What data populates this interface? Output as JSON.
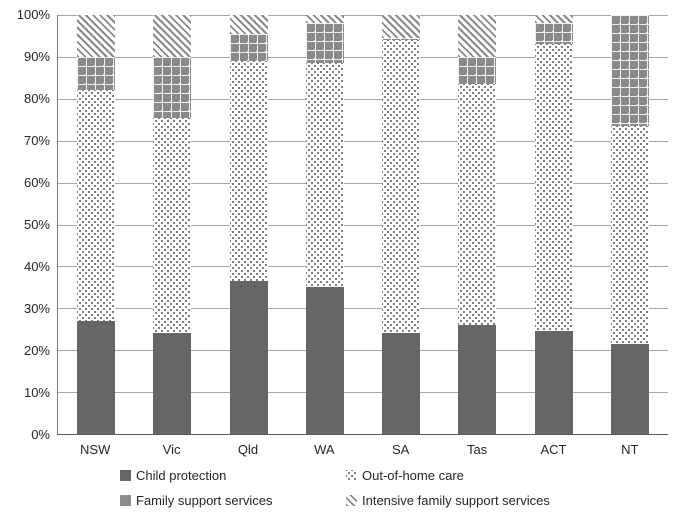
{
  "chart_data": {
    "type": "bar",
    "stacked": true,
    "percent": true,
    "title": "",
    "categories": [
      "NSW",
      "Vic",
      "Qld",
      "WA",
      "SA",
      "Tas",
      "ACT",
      "NT"
    ],
    "series": [
      {
        "name": "Child protection",
        "pattern": "solid-dark",
        "values": [
          27,
          24,
          36.5,
          35,
          24,
          26,
          24.5,
          21.5
        ]
      },
      {
        "name": "Out-of-home care",
        "pattern": "dots",
        "values": [
          55,
          51.5,
          52.5,
          53.5,
          70,
          57.5,
          68.5,
          52
        ]
      },
      {
        "name": "Family support services",
        "pattern": "grid-dots",
        "values": [
          8,
          14.5,
          6.5,
          9.5,
          0.5,
          6.5,
          5,
          26.5
        ]
      },
      {
        "name": "Intensive family support services",
        "pattern": "hatch",
        "values": [
          10,
          10,
          4.5,
          2,
          5.5,
          10,
          2,
          0
        ]
      }
    ],
    "y_axis": {
      "min": 0,
      "max": 100,
      "grid": true,
      "ticks": [
        "0%",
        "10%",
        "20%",
        "30%",
        "40%",
        "50%",
        "60%",
        "70%",
        "80%",
        "90%",
        "100%"
      ]
    },
    "legend": {
      "position": "bottom",
      "columns": 2,
      "entries": [
        {
          "label": "Child protection",
          "pattern": "solid-dark"
        },
        {
          "label": "Out-of-home care",
          "pattern": "dots"
        },
        {
          "label": "Family support services",
          "pattern": "grid-dots"
        },
        {
          "label": "Intensive family support services",
          "pattern": "hatch"
        }
      ]
    }
  },
  "colors": {
    "bar_solid_dark": "#666666",
    "pattern_gray": "#8a8a8a",
    "family_support_legend_gray": "#8c8c8c",
    "gridline": "#a6a6a6",
    "axis_line": "#595959",
    "text": "#262626",
    "background": "#ffffff"
  }
}
